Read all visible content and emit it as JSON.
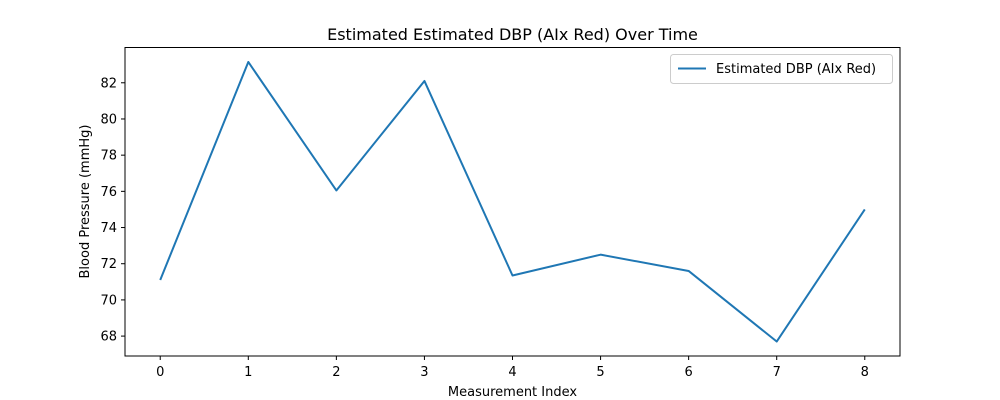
{
  "chart_data": {
    "type": "line",
    "title": "Estimated Estimated DBP (AIx Red) Over Time",
    "xlabel": "Measurement Index",
    "ylabel": "Blood Pressure (mmHg)",
    "x": [
      0,
      1,
      2,
      3,
      4,
      5,
      6,
      7,
      8
    ],
    "series": [
      {
        "name": "Estimated DBP (AIx Red)",
        "color": "#1f77b4",
        "values": [
          71.1,
          83.15,
          76.05,
          82.1,
          71.35,
          72.5,
          71.6,
          67.7,
          75.0
        ]
      }
    ],
    "xlim": [
      -0.4,
      8.4
    ],
    "ylim": [
      66.9,
      83.95
    ],
    "xticks": [
      "0",
      "1",
      "2",
      "3",
      "4",
      "5",
      "6",
      "7",
      "8"
    ],
    "yticks": [
      "68",
      "70",
      "72",
      "74",
      "76",
      "78",
      "80",
      "82"
    ],
    "grid": false,
    "legend_position": "top-right"
  }
}
